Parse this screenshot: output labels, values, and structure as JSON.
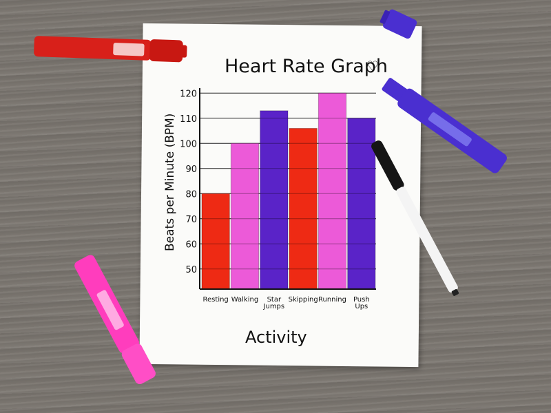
{
  "chart_data": {
    "type": "bar",
    "title": "Heart Rate Graph",
    "title_symbol": "♡",
    "xlabel": "Activity",
    "ylabel": "Beats per Minute (BPM)",
    "categories": [
      "Resting",
      "Walking",
      "Star Jumps",
      "Skipping",
      "Running",
      "Push Ups"
    ],
    "values": [
      80,
      100,
      113,
      106,
      120,
      110
    ],
    "bar_colors": [
      "#ee2a14",
      "#ec5ad8",
      "#5a23c8",
      "#ee2a14",
      "#ec5ad8",
      "#5a23c8"
    ],
    "ylim": [
      42,
      122
    ],
    "yticks": [
      50,
      60,
      70,
      80,
      90,
      100,
      110,
      120
    ],
    "grid": true
  },
  "scene": {
    "markers": [
      "red-marker",
      "pink-marker",
      "purple-marker",
      "black-pen"
    ],
    "colors": {
      "red": "#d8201a",
      "pink": "#ff3dbd",
      "purple": "#4a2fd0",
      "black": "#151515"
    }
  }
}
